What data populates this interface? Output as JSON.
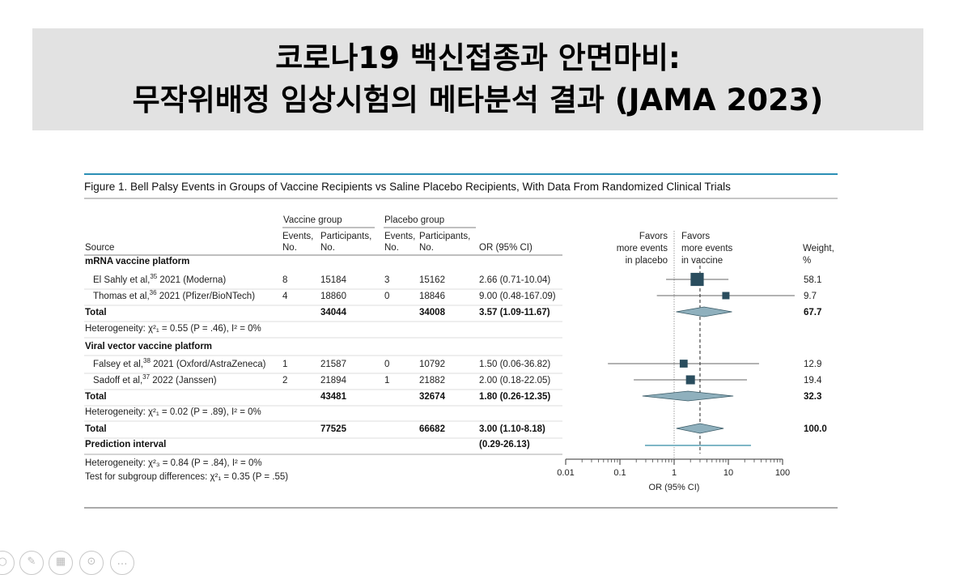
{
  "banner": {
    "line1": "코로나19 백신접종과 안면마비:",
    "line2": "무작위배정 임상시험의 메타분석 결과 (JAMA 2023)"
  },
  "figure": {
    "title": "Figure 1. Bell Palsy Events in Groups of Vaccine Recipients vs Saline Placebo Recipients, With Data From Randomized Clinical Trials",
    "headers": {
      "source": "Source",
      "vaccine_group": "Vaccine group",
      "placebo_group": "Placebo group",
      "events_1": "Events,",
      "events_2": "No.",
      "participants_1": "Participants,",
      "participants_2": "No.",
      "or": "OR (95% CI)",
      "favors_placebo": [
        "Favors",
        "more events",
        "in placebo"
      ],
      "favors_vaccine": [
        "Favors",
        "more events",
        "in vaccine"
      ],
      "weight_1": "Weight,",
      "weight_2": "%"
    },
    "rows": [
      {
        "type": "section",
        "source": "mRNA vaccine platform"
      },
      {
        "type": "study",
        "source": "El Sahly et al,",
        "sup": "35",
        "tail": " 2021 (Moderna)",
        "ve": "8",
        "vp": "15184",
        "pe": "3",
        "pp": "15162",
        "or": "2.66 (0.71-10.04)",
        "weight": "58.1"
      },
      {
        "type": "study",
        "source": "Thomas et al,",
        "sup": "36",
        "tail": " 2021 (Pfizer/BioNTech)",
        "ve": "4",
        "vp": "18860",
        "pe": "0",
        "pp": "18846",
        "or": "9.00 (0.48-167.09)",
        "weight": "9.7"
      },
      {
        "type": "total",
        "source": "Total",
        "vp": "34044",
        "pp": "34008",
        "or": "3.57 (1.09-11.67)",
        "weight": "67.7"
      },
      {
        "type": "het",
        "text": "Heterogeneity: χ²₁ = 0.55 (P = .46), I² = 0%"
      },
      {
        "type": "section",
        "source": "Viral vector vaccine platform"
      },
      {
        "type": "study",
        "source": "Falsey et al,",
        "sup": "38",
        "tail": " 2021 (Oxford/AstraZeneca)",
        "ve": "1",
        "vp": "21587",
        "pe": "0",
        "pp": "10792",
        "or": "1.50 (0.06-36.82)",
        "weight": "12.9"
      },
      {
        "type": "study",
        "source": "Sadoff et al,",
        "sup": "37",
        "tail": " 2022 (Janssen)",
        "ve": "2",
        "vp": "21894",
        "pe": "1",
        "pp": "21882",
        "or": "2.00 (0.18-22.05)",
        "weight": "19.4"
      },
      {
        "type": "total",
        "source": "Total",
        "vp": "43481",
        "pp": "32674",
        "or": "1.80 (0.26-12.35)",
        "weight": "32.3"
      },
      {
        "type": "het",
        "text": "Heterogeneity: χ²₁ = 0.02 (P = .89), I² = 0%"
      },
      {
        "type": "total",
        "source": "Total",
        "vp": "77525",
        "pp": "66682",
        "or": "3.00 (1.10-8.18)",
        "weight": "100.0"
      },
      {
        "type": "pred",
        "source": "Prediction interval",
        "or": "(0.29-26.13)"
      }
    ],
    "footer": {
      "het_overall": "Heterogeneity: χ²₃ = 0.84 (P = .84), I² = 0%",
      "subgroup": "Test for subgroup differences: χ²₁ = 0.35 (P = .55)"
    }
  },
  "chart_data": {
    "type": "forest",
    "scale": "log",
    "xlabel": "OR (95% CI)",
    "xticks": [
      0.01,
      0.1,
      1,
      10,
      100
    ],
    "xtick_labels": [
      "0.01",
      "0.1",
      "1",
      "10",
      "100"
    ],
    "xlim": [
      0.01,
      100
    ],
    "reference_line": 1,
    "pooled_line": 3.0,
    "studies": [
      {
        "name": "El Sahly et al, 2021 (Moderna)",
        "or": 2.66,
        "lo": 0.71,
        "hi": 10.04,
        "weight": 58.1
      },
      {
        "name": "Thomas et al, 2021 (Pfizer/BioNTech)",
        "or": 9.0,
        "lo": 0.48,
        "hi": 167.09,
        "weight": 9.7
      },
      {
        "name": "Falsey et al, 2021 (Oxford/AstraZeneca)",
        "or": 1.5,
        "lo": 0.06,
        "hi": 36.82,
        "weight": 12.9
      },
      {
        "name": "Sadoff et al, 2022 (Janssen)",
        "or": 2.0,
        "lo": 0.18,
        "hi": 22.05,
        "weight": 19.4
      }
    ],
    "pooled": [
      {
        "name": "mRNA Total",
        "or": 3.57,
        "lo": 1.09,
        "hi": 11.67,
        "weight": 67.7
      },
      {
        "name": "Viral vector Total",
        "or": 1.8,
        "lo": 0.26,
        "hi": 12.35,
        "weight": 32.3
      },
      {
        "name": "Overall Total",
        "or": 3.0,
        "lo": 1.1,
        "hi": 8.18,
        "weight": 100.0
      }
    ],
    "prediction_interval": {
      "lo": 0.29,
      "hi": 26.13
    },
    "colors": {
      "marker": "#2a4d5e",
      "diamond": "#8fb0bd",
      "prediction": "#7fb7c6",
      "rule": "#2b8fb5"
    }
  },
  "toolbar": {
    "icons": [
      "circle-icon",
      "pen-icon",
      "grid-icon",
      "zoom-icon",
      "more-icon"
    ]
  }
}
